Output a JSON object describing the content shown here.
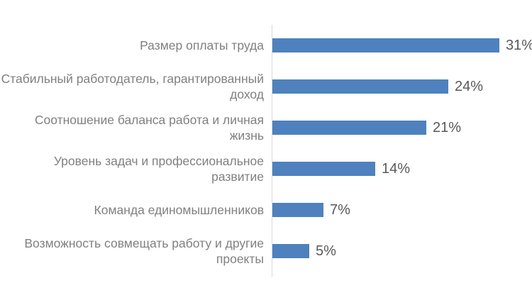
{
  "chart_data": {
    "type": "bar",
    "orientation": "horizontal",
    "title": "",
    "xlabel": "",
    "ylabel": "",
    "categories": [
      "Размер оплаты труда",
      "Стабильный работодатель, гарантированный доход",
      "Соотношение баланса работа и личная жизнь",
      "Уровень задач и профессиональное развитие",
      "Команда единомышленников",
      "Возможность совмещать работу и другие проекты"
    ],
    "values": [
      31,
      24,
      21,
      14,
      7,
      5
    ],
    "value_labels": [
      "31%",
      "24%",
      "21%",
      "14%",
      "7%",
      "5%"
    ],
    "xlim": [
      0,
      35.5
    ],
    "grid": false,
    "legend_position": "none",
    "colors": {
      "bar": "#4E81BD",
      "category_label": "#808080",
      "value_label": "#595959",
      "axis_line": "#D9D9D9",
      "background": "#FFFFFF"
    }
  }
}
